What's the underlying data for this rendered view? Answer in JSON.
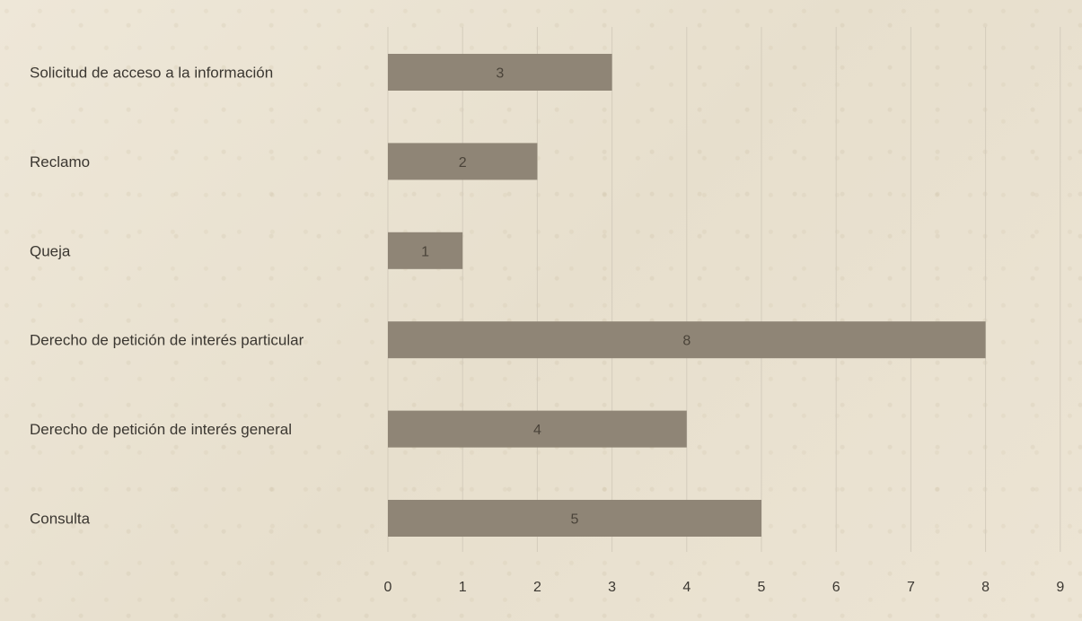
{
  "chart_data": {
    "type": "bar",
    "orientation": "horizontal",
    "categories": [
      "Solicitud de acceso a la información",
      "Reclamo",
      "Queja",
      "Derecho de petición de interés particular",
      "Derecho de petición de interés general",
      "Consulta"
    ],
    "values": [
      3,
      2,
      1,
      8,
      4,
      5
    ],
    "xlim": [
      0,
      9
    ],
    "xticks": [
      0,
      1,
      2,
      3,
      4,
      5,
      6,
      7,
      8,
      9
    ],
    "title": "",
    "xlabel": "",
    "ylabel": "",
    "grid": "vertical",
    "legend": "none",
    "data_labels": "inside-center",
    "colors": {
      "bar": "#8f8576",
      "label_text": "#3b3731",
      "grid": "#d4ccbc",
      "background": "#ebe3d3"
    }
  }
}
